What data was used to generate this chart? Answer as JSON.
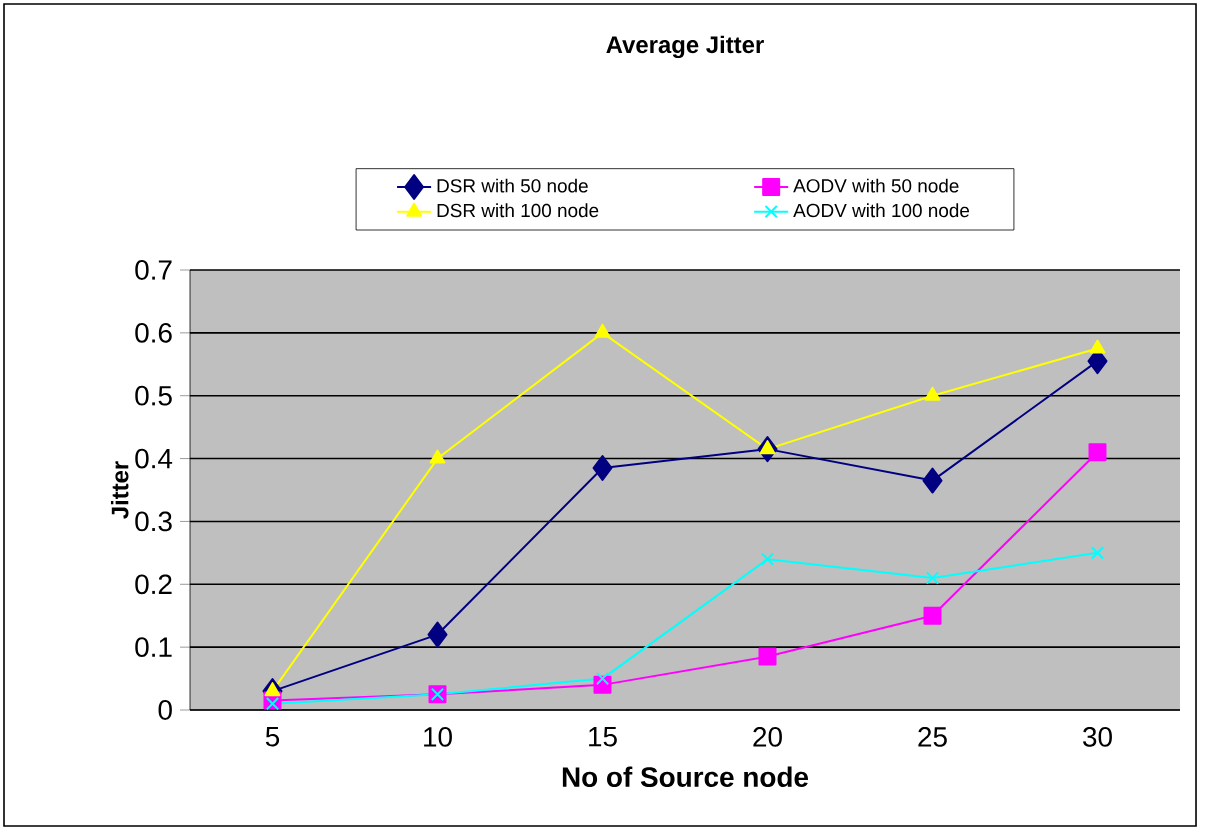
{
  "chart_data": {
    "type": "line",
    "title": "Average Jitter",
    "xlabel": "No of Source node",
    "ylabel": "Jitter",
    "categories": [
      "5",
      "10",
      "15",
      "20",
      "25",
      "30"
    ],
    "series": [
      {
        "name": "DSR with 50 node",
        "color": "#000080",
        "marker": "diamond",
        "values": [
          0.03,
          0.12,
          0.385,
          0.415,
          0.365,
          0.555
        ]
      },
      {
        "name": "AODV with 50 node",
        "color": "#ff00ff",
        "marker": "square",
        "values": [
          0.015,
          0.025,
          0.04,
          0.085,
          0.15,
          0.41
        ]
      },
      {
        "name": "DSR with 100 node",
        "color": "#ffff00",
        "marker": "triangle",
        "values": [
          0.03,
          0.4,
          0.6,
          0.415,
          0.5,
          0.575
        ]
      },
      {
        "name": "AODV with 100 node",
        "color": "#00ffff",
        "marker": "cross",
        "values": [
          0.01,
          0.025,
          0.05,
          0.24,
          0.21,
          0.25
        ]
      }
    ],
    "ylim": [
      0,
      0.7
    ],
    "yticks": [
      0,
      0.1,
      0.2,
      0.3,
      0.4,
      0.5,
      0.6,
      0.7
    ],
    "grid": "y",
    "legend": "top",
    "line_style": "solid"
  }
}
